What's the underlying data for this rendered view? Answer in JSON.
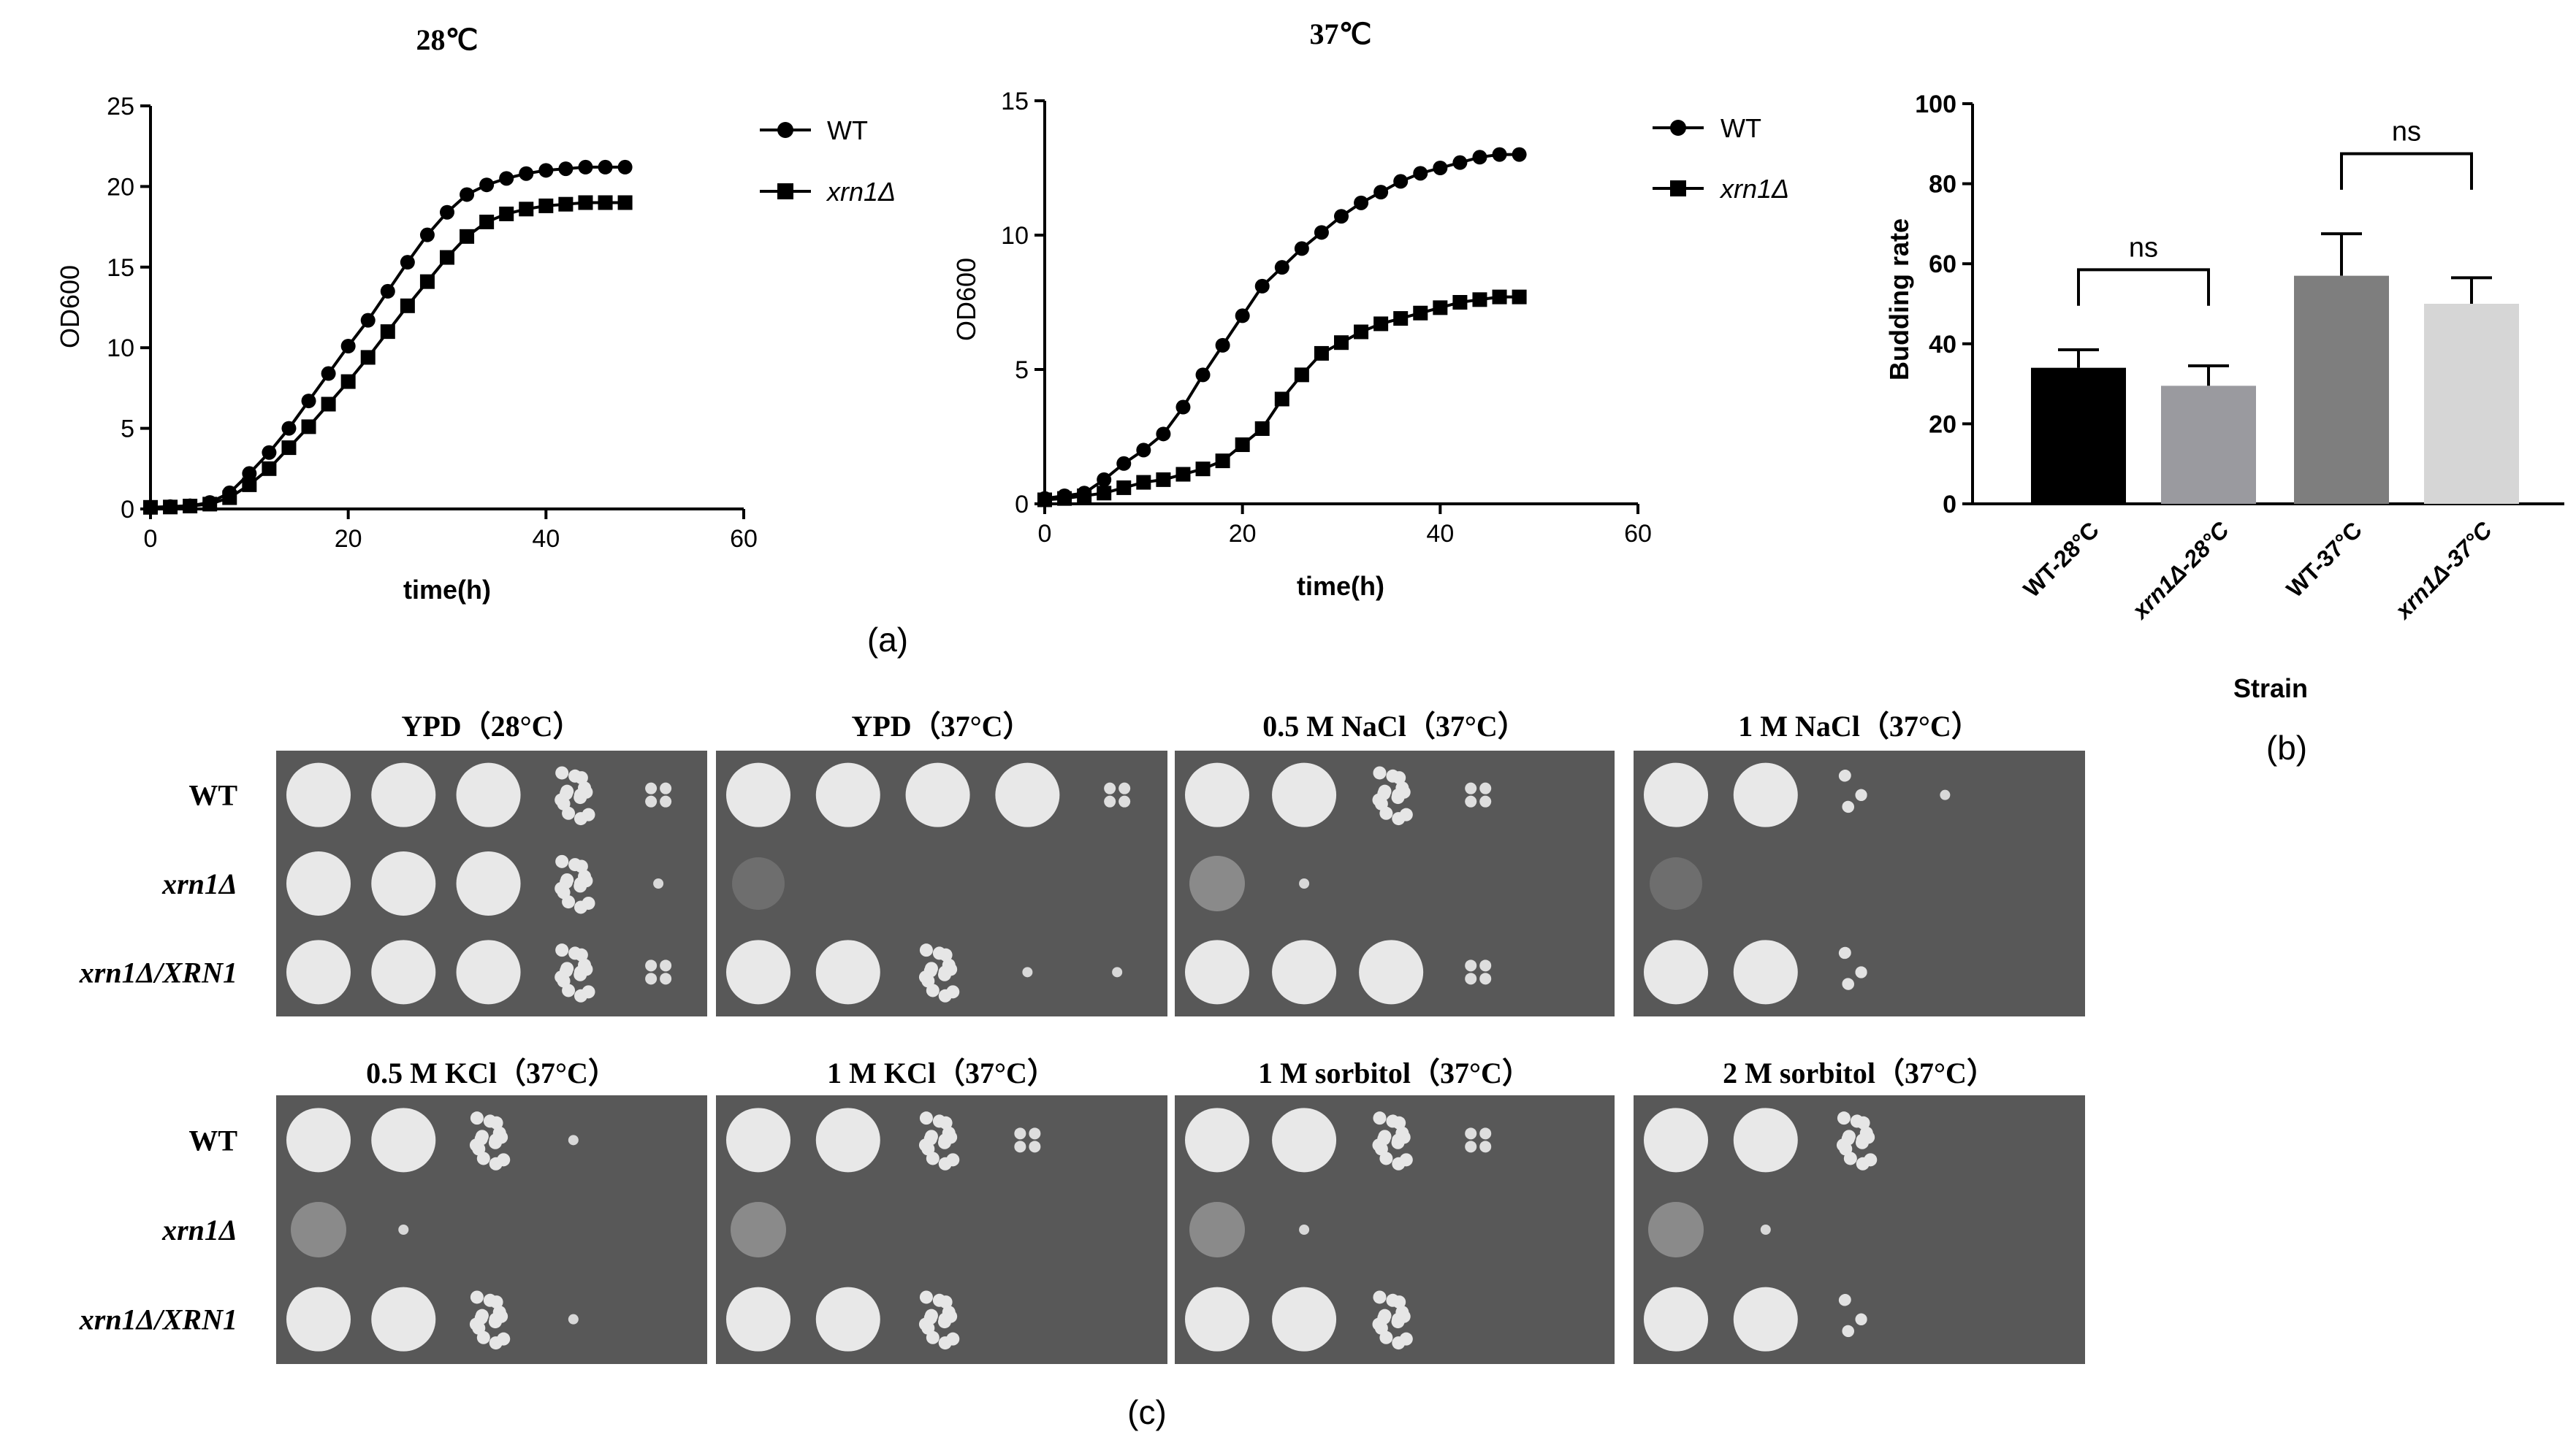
{
  "panel_labels": {
    "a": "(a)",
    "b": "(b)",
    "c": "(c)"
  },
  "chart_data": [
    {
      "type": "line",
      "title": "28℃",
      "xlabel": "time(h)",
      "ylabel": "OD600",
      "xlim": [
        0,
        60
      ],
      "ylim": [
        0,
        25
      ],
      "xticks": [
        0,
        20,
        40,
        60
      ],
      "yticks": [
        0,
        5,
        10,
        15,
        20,
        25
      ],
      "x": [
        0,
        2,
        4,
        6,
        8,
        10,
        12,
        14,
        16,
        18,
        20,
        22,
        24,
        26,
        28,
        30,
        32,
        34,
        36,
        38,
        40,
        42,
        44,
        46,
        48
      ],
      "series": [
        {
          "name": "WT",
          "marker": "circle",
          "values": [
            0.1,
            0.15,
            0.2,
            0.4,
            1.0,
            2.2,
            3.5,
            5.0,
            6.7,
            8.4,
            10.1,
            11.7,
            13.5,
            15.3,
            17.0,
            18.4,
            19.5,
            20.1,
            20.5,
            20.8,
            21.0,
            21.1,
            21.2,
            21.2,
            21.2
          ]
        },
        {
          "name": "xrn1Δ",
          "marker": "square",
          "values": [
            0.1,
            0.12,
            0.18,
            0.3,
            0.7,
            1.5,
            2.5,
            3.8,
            5.1,
            6.5,
            7.9,
            9.4,
            11.0,
            12.6,
            14.1,
            15.6,
            16.9,
            17.8,
            18.3,
            18.6,
            18.8,
            18.9,
            19.0,
            19.0,
            19.0
          ]
        }
      ]
    },
    {
      "type": "line",
      "title": "37℃",
      "xlabel": "time(h)",
      "ylabel": "OD600",
      "xlim": [
        0,
        60
      ],
      "ylim": [
        0,
        15
      ],
      "xticks": [
        0,
        20,
        40,
        60
      ],
      "yticks": [
        0,
        5,
        10,
        15
      ],
      "x": [
        0,
        2,
        4,
        6,
        8,
        10,
        12,
        14,
        16,
        18,
        20,
        22,
        24,
        26,
        28,
        30,
        32,
        34,
        36,
        38,
        40,
        42,
        44,
        46,
        48
      ],
      "series": [
        {
          "name": "WT",
          "marker": "circle",
          "values": [
            0.2,
            0.3,
            0.4,
            0.9,
            1.5,
            2.0,
            2.6,
            3.6,
            4.8,
            5.9,
            7.0,
            8.1,
            8.8,
            9.5,
            10.1,
            10.7,
            11.2,
            11.6,
            12.0,
            12.3,
            12.5,
            12.7,
            12.9,
            13.0,
            13.0
          ]
        },
        {
          "name": "xrn1Δ",
          "marker": "square",
          "values": [
            0.15,
            0.2,
            0.3,
            0.4,
            0.6,
            0.8,
            0.9,
            1.1,
            1.3,
            1.6,
            2.2,
            2.8,
            3.9,
            4.8,
            5.6,
            6.0,
            6.4,
            6.7,
            6.9,
            7.1,
            7.3,
            7.5,
            7.6,
            7.7,
            7.7
          ]
        }
      ]
    },
    {
      "type": "bar",
      "title": "",
      "xlabel": "Strain",
      "ylabel": "Budding rate",
      "ylim": [
        0,
        100
      ],
      "yticks": [
        0,
        20,
        40,
        60,
        80,
        100
      ],
      "categories": [
        "WT-28°C",
        "xrn1Δ-28°C",
        "WT-37°C",
        "xrn1Δ-37°C"
      ],
      "values": [
        34,
        29.5,
        57,
        50
      ],
      "errors": [
        4.5,
        5,
        10.5,
        6.5
      ],
      "colors": [
        "#000000",
        "#9a9a9f",
        "#7e7e7e",
        "#d6d6d6"
      ],
      "annotations": [
        {
          "text": "ns",
          "between": [
            0,
            1
          ]
        },
        {
          "text": "ns",
          "between": [
            2,
            3
          ]
        }
      ]
    }
  ],
  "spot_assay": {
    "strains": [
      "WT",
      "xrn1Δ",
      "xrn1Δ/XRN1"
    ],
    "row1_titles": [
      "YPD（28°C）",
      "YPD（37°C）",
      "0.5 M NaCl（37°C）",
      "1 M NaCl（37°C）"
    ],
    "row2_titles": [
      "0.5 M KCl（37°C）",
      "1 M KCl（37°C）",
      "1 M sorbitol（37°C）",
      "2 M sorbitol（37°C）"
    ],
    "plates": [
      {
        "growth": [
          [
            5,
            5,
            5,
            4,
            2
          ],
          [
            5,
            5,
            5,
            4,
            1
          ],
          [
            5,
            5,
            5,
            4,
            2
          ]
        ]
      },
      {
        "growth": [
          [
            5,
            5,
            5,
            5,
            2
          ],
          [
            1,
            0,
            0,
            0,
            0
          ],
          [
            5,
            5,
            4,
            1,
            1
          ]
        ]
      },
      {
        "growth": [
          [
            5,
            5,
            4,
            2,
            0
          ],
          [
            2,
            1,
            0,
            0,
            0
          ],
          [
            5,
            5,
            5,
            2,
            0
          ]
        ]
      },
      {
        "growth": [
          [
            5,
            5,
            3,
            1,
            0
          ],
          [
            1,
            0,
            0,
            0,
            0
          ],
          [
            5,
            5,
            3,
            0,
            0
          ]
        ]
      },
      {
        "growth": [
          [
            5,
            5,
            4,
            1,
            0
          ],
          [
            2,
            1,
            0,
            0,
            0
          ],
          [
            5,
            5,
            4,
            1,
            0
          ]
        ]
      },
      {
        "growth": [
          [
            5,
            5,
            4,
            2,
            0
          ],
          [
            2,
            0,
            0,
            0,
            0
          ],
          [
            5,
            5,
            4,
            0,
            0
          ]
        ]
      },
      {
        "growth": [
          [
            5,
            5,
            4,
            2,
            0
          ],
          [
            2,
            1,
            0,
            0,
            0
          ],
          [
            5,
            5,
            4,
            0,
            0
          ]
        ]
      },
      {
        "growth": [
          [
            5,
            5,
            4,
            0,
            0
          ],
          [
            2,
            1,
            0,
            0,
            0
          ],
          [
            5,
            5,
            3,
            0,
            0
          ]
        ]
      }
    ]
  }
}
